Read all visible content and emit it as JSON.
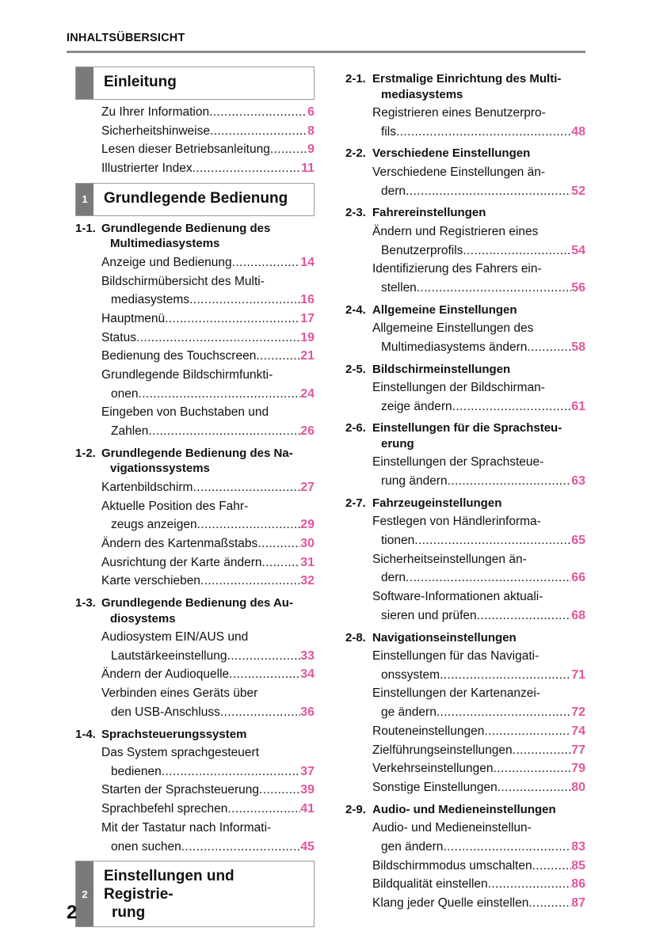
{
  "header": {
    "title": "INHALTSÜBERSICHT"
  },
  "page_number": "2",
  "colors": {
    "page_link": "#e0569e",
    "chapter_tab": "#7a7a7a",
    "rule": "#8a8a8a"
  },
  "left": [
    {
      "type": "chapter",
      "num": "",
      "title": "Einleitung",
      "title2": ""
    },
    {
      "type": "entry",
      "l1": "Zu Ihrer Information",
      "page": "6"
    },
    {
      "type": "entry",
      "l1": "Sicherheitshinweise",
      "page": "8"
    },
    {
      "type": "entry",
      "l1": "Lesen dieser Betriebsanleitung",
      "page": "9"
    },
    {
      "type": "entry",
      "l1": "Illustrierter Index",
      "page": "11"
    },
    {
      "type": "chapter",
      "num": "1",
      "title": "Grundlegende Bedienung",
      "title2": ""
    },
    {
      "type": "section",
      "num": "1-1.",
      "l1": "Grundlegende Bedienung des",
      "l2": "Multimediasystems"
    },
    {
      "type": "entry",
      "l1": "Anzeige und Bedienung",
      "page": "14"
    },
    {
      "type": "entry",
      "l1": "Bildschirmübersicht des Multi-",
      "l2": "mediasystems",
      "page": "16"
    },
    {
      "type": "entry",
      "l1": "Hauptmenü",
      "page": "17"
    },
    {
      "type": "entry",
      "l1": "Status",
      "page": "19"
    },
    {
      "type": "entry",
      "l1": "Bedienung des Touchscreen",
      "page": "21"
    },
    {
      "type": "entry",
      "l1": "Grundlegende Bildschirmfunkti-",
      "l2": "onen",
      "page": "24"
    },
    {
      "type": "entry",
      "l1": "Eingeben von Buchstaben und",
      "l2": "Zahlen",
      "page": "26"
    },
    {
      "type": "section",
      "num": "1-2.",
      "l1": "Grundlegende Bedienung des Na-",
      "l2": "vigationssystems"
    },
    {
      "type": "entry",
      "l1": "Kartenbildschirm",
      "page": "27"
    },
    {
      "type": "entry",
      "l1": "Aktuelle Position des Fahr-",
      "l2": "zeugs anzeigen",
      "page": "29"
    },
    {
      "type": "entry",
      "l1": "Ändern des Kartenmaßstabs",
      "page": "30"
    },
    {
      "type": "entry",
      "l1": "Ausrichtung der Karte ändern",
      "page": "31"
    },
    {
      "type": "entry",
      "l1": "Karte verschieben",
      "page": "32"
    },
    {
      "type": "section",
      "num": "1-3.",
      "l1": "Grundlegende Bedienung des Au-",
      "l2": "diosystems"
    },
    {
      "type": "entry",
      "l1": "Audiosystem EIN/AUS und",
      "l2": "Lautstärkeeinstellung",
      "page": "33"
    },
    {
      "type": "entry",
      "l1": "Ändern der Audioquelle",
      "page": "34"
    },
    {
      "type": "entry",
      "l1": "Verbinden eines Geräts über",
      "l2": "den USB-Anschluss",
      "page": "36"
    },
    {
      "type": "section",
      "num": "1-4.",
      "l1": "Sprachsteuerungssystem",
      "l2": ""
    },
    {
      "type": "entry",
      "l1": "Das System sprachgesteuert",
      "l2": "bedienen",
      "page": "37"
    },
    {
      "type": "entry",
      "l1": "Starten der Sprachsteuerung",
      "page": "39"
    },
    {
      "type": "entry",
      "l1": "Sprachbefehl sprechen",
      "page": "41"
    },
    {
      "type": "entry",
      "l1": "Mit der Tastatur nach Informati-",
      "l2": "onen suchen",
      "page": "45"
    },
    {
      "type": "chapter",
      "num": "2",
      "title": "Einstellungen und Registrie-",
      "title2": "rung"
    }
  ],
  "right": [
    {
      "type": "section",
      "num": "2-1.",
      "l1": "Erstmalige Einrichtung des Multi-",
      "l2": "mediasystems"
    },
    {
      "type": "entry",
      "l1": "Registrieren eines Benutzerpro-",
      "l2": "fils",
      "page": "48"
    },
    {
      "type": "section",
      "num": "2-2.",
      "l1": "Verschiedene Einstellungen",
      "l2": ""
    },
    {
      "type": "entry",
      "l1": "Verschiedene Einstellungen än-",
      "l2": "dern",
      "page": "52"
    },
    {
      "type": "section",
      "num": "2-3.",
      "l1": "Fahrereinstellungen",
      "l2": ""
    },
    {
      "type": "entry",
      "l1": "Ändern und Registrieren eines",
      "l2": "Benutzerprofils",
      "page": "54"
    },
    {
      "type": "entry",
      "l1": "Identifizierung des Fahrers ein-",
      "l2": "stellen",
      "page": "56"
    },
    {
      "type": "section",
      "num": "2-4.",
      "l1": "Allgemeine Einstellungen",
      "l2": ""
    },
    {
      "type": "entry",
      "l1": "Allgemeine Einstellungen des",
      "l2": "Multimediasystems ändern",
      "page": "58"
    },
    {
      "type": "section",
      "num": "2-5.",
      "l1": "Bildschirmeinstellungen",
      "l2": ""
    },
    {
      "type": "entry",
      "l1": "Einstellungen der Bildschirman-",
      "l2": "zeige ändern",
      "page": "61"
    },
    {
      "type": "section",
      "num": "2-6.",
      "l1": "Einstellungen für die Sprachsteu-",
      "l2": "erung"
    },
    {
      "type": "entry",
      "l1": "Einstellungen der Sprachsteue-",
      "l2": "rung ändern",
      "page": "63"
    },
    {
      "type": "section",
      "num": "2-7.",
      "l1": "Fahrzeugeinstellungen",
      "l2": ""
    },
    {
      "type": "entry",
      "l1": "Festlegen von Händlerinforma-",
      "l2": "tionen",
      "page": "65"
    },
    {
      "type": "entry",
      "l1": "Sicherheitseinstellungen än-",
      "l2": "dern",
      "page": "66"
    },
    {
      "type": "entry",
      "l1": "Software-Informationen aktuali-",
      "l2": "sieren und prüfen",
      "page": "68"
    },
    {
      "type": "section",
      "num": "2-8.",
      "l1": "Navigationseinstellungen",
      "l2": ""
    },
    {
      "type": "entry",
      "l1": "Einstellungen für das Navigati-",
      "l2": "onssystem",
      "page": "71"
    },
    {
      "type": "entry",
      "l1": "Einstellungen der Kartenanzei-",
      "l2": "ge ändern",
      "page": "72"
    },
    {
      "type": "entry",
      "l1": "Routeneinstellungen",
      "page": "74"
    },
    {
      "type": "entry",
      "l1": "Zielführungseinstellungen",
      "page": "77"
    },
    {
      "type": "entry",
      "l1": "Verkehrseinstellungen",
      "page": "79"
    },
    {
      "type": "entry",
      "l1": "Sonstige Einstellungen",
      "page": "80"
    },
    {
      "type": "section",
      "num": "2-9.",
      "l1": "Audio- und Medieneinstellungen",
      "l2": ""
    },
    {
      "type": "entry",
      "l1": "Audio- und Medieneinstellun-",
      "l2": "gen ändern",
      "page": "83"
    },
    {
      "type": "entry",
      "l1": "Bildschirmmodus umschalten",
      "page": "85"
    },
    {
      "type": "entry",
      "l1": "Bildqualität einstellen",
      "page": "86"
    },
    {
      "type": "entry",
      "l1": "Klang jeder Quelle einstellen",
      "page": "87"
    }
  ]
}
